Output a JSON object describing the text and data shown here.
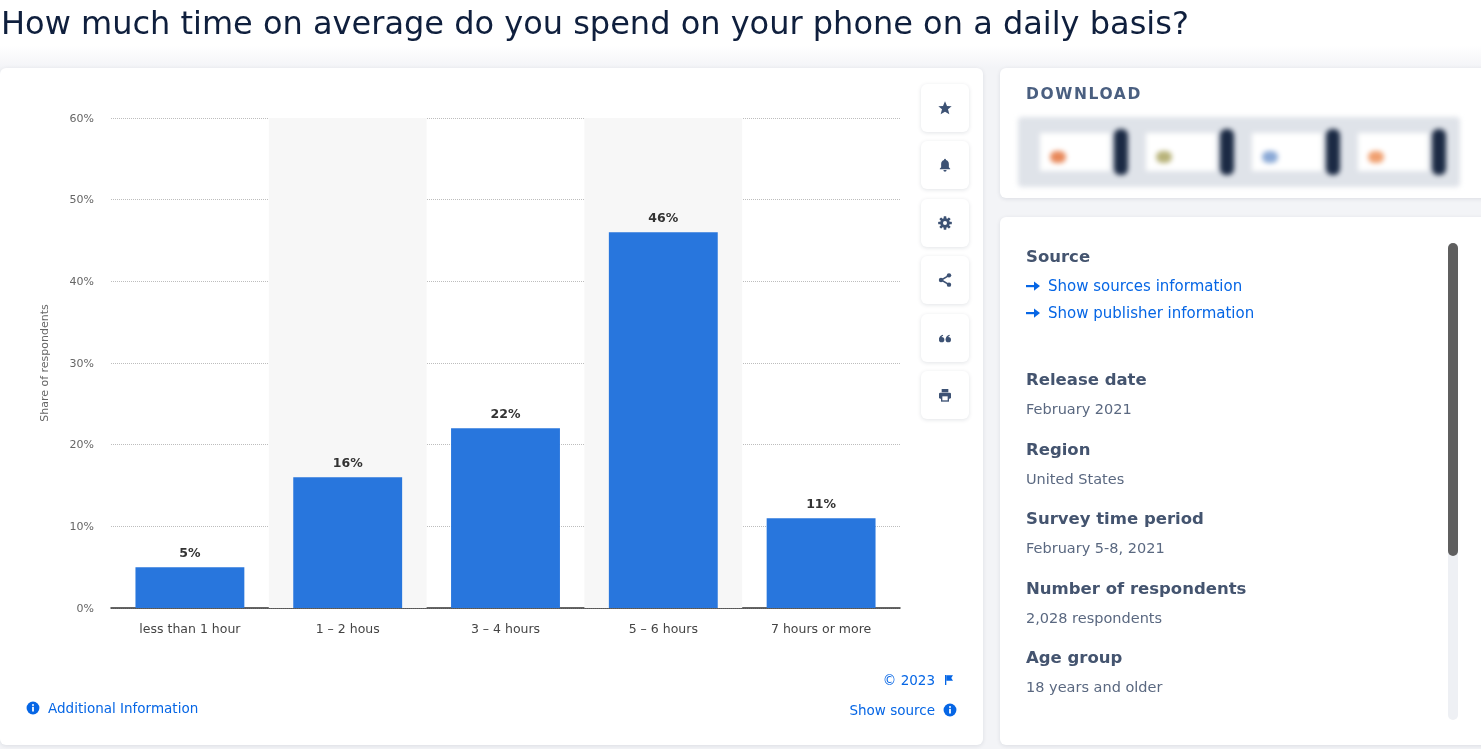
{
  "chart_data": [
    {
      "type": "bar",
      "title": "How much time on average do you spend on your phone on a daily basis?",
      "ylabel": "Share of respondents",
      "categories": [
        "less than 1 hour",
        "1 – 2 hous",
        "3 – 4 hours",
        "5 – 6 hours",
        "7 hours or more"
      ],
      "values": [
        5,
        16,
        22,
        46,
        11
      ],
      "value_labels": [
        "5%",
        "16%",
        "22%",
        "46%",
        "11%"
      ],
      "color": "#2876dd",
      "ylim": [
        0,
        60
      ],
      "yticks": [
        {
          "value": 0,
          "label": "0%"
        },
        {
          "value": 10,
          "label": "10%"
        },
        {
          "value": 20,
          "label": "20%"
        },
        {
          "value": 30,
          "label": "30%"
        },
        {
          "value": 40,
          "label": "40%"
        },
        {
          "value": 50,
          "label": "50%"
        },
        {
          "value": 60,
          "label": "60%"
        }
      ],
      "grid": "y",
      "bands": [
        {
          "axis": "x",
          "from": "1 – 2 hous",
          "to": "1 – 2 hous",
          "color": "#f7f7f7"
        },
        {
          "axis": "x",
          "from": "5 – 6 hours",
          "to": "5 – 6 hours",
          "color": "#f7f7f7"
        }
      ],
      "annotations": [
        "© 2023",
        "Additional Information",
        "Show source"
      ]
    },
    {
      "type": "other",
      "annotations": [
        "DOWNLOAD",
        "Source",
        "Show sources information",
        "Show publisher information",
        "Release date",
        "February 2021",
        "Region",
        "United States",
        "Survey time period",
        "February 5-8, 2021",
        "Number of respondents",
        "2,028 respondents",
        "Age group",
        "18 years and older"
      ]
    }
  ]
}
